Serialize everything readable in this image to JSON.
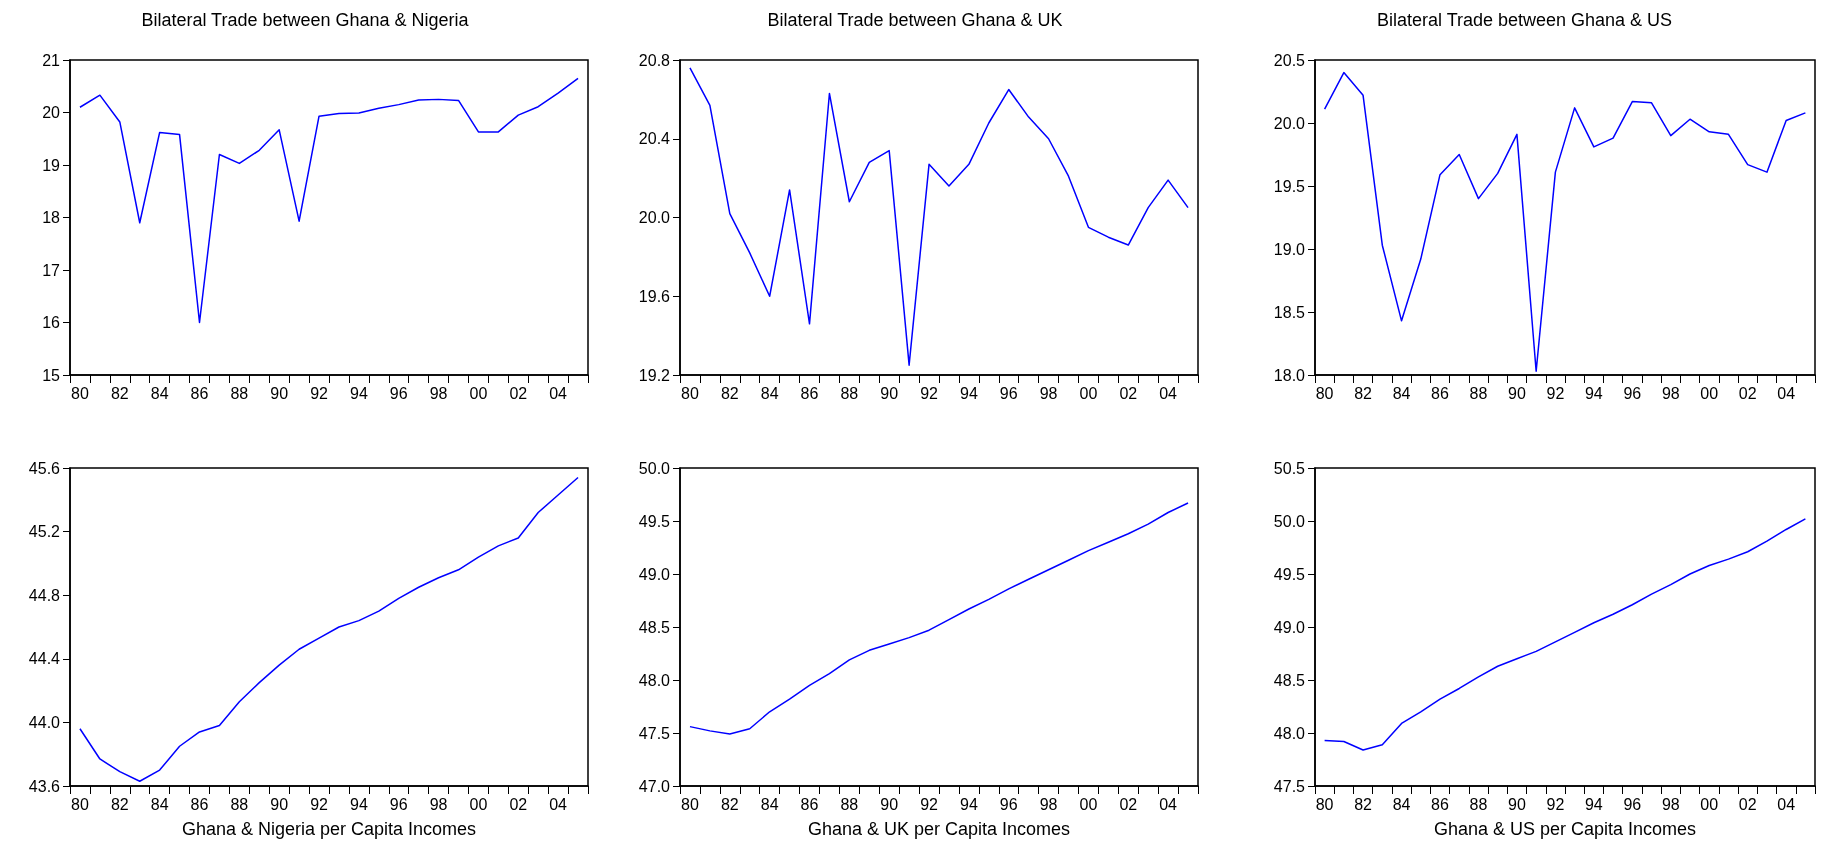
{
  "chart_data": [
    {
      "type": "line",
      "title": "Bilateral Trade between Ghana & Nigeria",
      "categories": [
        "80",
        null,
        "82",
        null,
        "84",
        null,
        "86",
        null,
        "88",
        null,
        "90",
        null,
        "92",
        null,
        "94",
        null,
        "96",
        null,
        "98",
        null,
        "00",
        null,
        "02",
        null,
        "04",
        null
      ],
      "color": "#0000ff",
      "marker": "none",
      "grid": false,
      "ylim": [
        15,
        21
      ],
      "yticks": [
        15,
        16,
        17,
        18,
        19,
        20,
        21
      ],
      "values": [
        20.1,
        20.33,
        19.82,
        17.9,
        19.62,
        19.58,
        16.0,
        19.2,
        19.03,
        19.28,
        19.67,
        17.93,
        19.93,
        19.98,
        19.99,
        20.08,
        20.15,
        20.24,
        20.25,
        20.23,
        19.63,
        19.63,
        19.95,
        20.11,
        20.37,
        20.65
      ]
    },
    {
      "type": "line",
      "title": "Bilateral Trade between Ghana & UK",
      "categories": [
        "80",
        null,
        "82",
        null,
        "84",
        null,
        "86",
        null,
        "88",
        null,
        "90",
        null,
        "92",
        null,
        "94",
        null,
        "96",
        null,
        "98",
        null,
        "00",
        null,
        "02",
        null,
        "04",
        null
      ],
      "color": "#0000ff",
      "marker": "none",
      "grid": false,
      "ylim": [
        19.2,
        20.8
      ],
      "yticks": [
        19.2,
        19.6,
        {
          "value": 20,
          "label": "20.0"
        },
        20.4,
        20.8
      ],
      "values": [
        20.76,
        20.57,
        20.02,
        19.82,
        19.6,
        20.14,
        19.46,
        20.63,
        20.08,
        20.28,
        20.34,
        19.25,
        20.27,
        20.16,
        20.27,
        20.48,
        20.65,
        20.51,
        20.4,
        20.21,
        19.95,
        19.9,
        19.86,
        20.05,
        20.19,
        20.05
      ]
    },
    {
      "type": "line",
      "title": "Bilateral Trade between Ghana & US",
      "categories": [
        "80",
        null,
        "82",
        null,
        "84",
        null,
        "86",
        null,
        "88",
        null,
        "90",
        null,
        "92",
        null,
        "94",
        null,
        "96",
        null,
        "98",
        null,
        "00",
        null,
        "02",
        null,
        "04",
        null
      ],
      "color": "#0000ff",
      "marker": "none",
      "grid": false,
      "ylim": [
        18,
        20.5
      ],
      "yticks": [
        {
          "value": 18,
          "label": "18.0"
        },
        18.5,
        {
          "value": 19,
          "label": "19.0"
        },
        19.5,
        {
          "value": 20,
          "label": "20.0"
        },
        20.5
      ],
      "values": [
        20.11,
        20.4,
        20.22,
        19.03,
        18.43,
        18.92,
        19.59,
        19.75,
        19.4,
        19.6,
        19.91,
        18.03,
        19.61,
        20.12,
        19.81,
        19.88,
        20.17,
        20.16,
        19.9,
        20.03,
        19.93,
        19.91,
        19.67,
        19.61,
        20.02,
        20.08
      ]
    },
    {
      "type": "line",
      "xlabel": "Ghana & Nigeria per Capita Incomes",
      "categories": [
        "80",
        null,
        "82",
        null,
        "84",
        null,
        "86",
        null,
        "88",
        null,
        "90",
        null,
        "92",
        null,
        "94",
        null,
        "96",
        null,
        "98",
        null,
        "00",
        null,
        "02",
        null,
        "04",
        null
      ],
      "color": "#0000ff",
      "marker": "none",
      "grid": false,
      "ylim": [
        43.6,
        45.6
      ],
      "yticks": [
        43.6,
        {
          "value": 44,
          "label": "44.0"
        },
        44.4,
        44.8,
        45.2,
        45.6
      ],
      "values": [
        43.96,
        43.77,
        43.69,
        43.63,
        43.7,
        43.85,
        43.94,
        43.98,
        44.13,
        44.25,
        44.36,
        44.46,
        44.53,
        44.6,
        44.64,
        44.7,
        44.78,
        44.85,
        44.91,
        44.96,
        45.04,
        45.11,
        45.16,
        45.32,
        45.43,
        45.54
      ]
    },
    {
      "type": "line",
      "xlabel": "Ghana & UK per Capita Incomes",
      "categories": [
        "80",
        null,
        "82",
        null,
        "84",
        null,
        "86",
        null,
        "88",
        null,
        "90",
        null,
        "92",
        null,
        "94",
        null,
        "96",
        null,
        "98",
        null,
        "00",
        null,
        "02",
        null,
        "04",
        null
      ],
      "color": "#0000ff",
      "marker": "none",
      "grid": false,
      "ylim": [
        47,
        50
      ],
      "yticks": [
        {
          "value": 47,
          "label": "47.0"
        },
        47.5,
        {
          "value": 48,
          "label": "48.0"
        },
        48.5,
        {
          "value": 49,
          "label": "49.0"
        },
        49.5,
        {
          "value": 50,
          "label": "50.0"
        }
      ],
      "values": [
        47.56,
        47.52,
        47.49,
        47.54,
        47.7,
        47.82,
        47.95,
        48.06,
        48.19,
        48.28,
        48.34,
        48.4,
        48.47,
        48.57,
        48.67,
        48.76,
        48.86,
        48.95,
        49.04,
        49.13,
        49.22,
        49.3,
        49.38,
        49.47,
        49.58,
        49.67
      ]
    },
    {
      "type": "line",
      "xlabel": "Ghana & US per Capita Incomes",
      "categories": [
        "80",
        null,
        "82",
        null,
        "84",
        null,
        "86",
        null,
        "88",
        null,
        "90",
        null,
        "92",
        null,
        "94",
        null,
        "96",
        null,
        "98",
        null,
        "00",
        null,
        "02",
        null,
        "04",
        null
      ],
      "color": "#0000ff",
      "marker": "none",
      "grid": false,
      "ylim": [
        47.5,
        50.5
      ],
      "yticks": [
        47.5,
        {
          "value": 48,
          "label": "48.0"
        },
        48.5,
        {
          "value": 49,
          "label": "49.0"
        },
        49.5,
        {
          "value": 50,
          "label": "50.0"
        },
        50.5
      ],
      "values": [
        47.93,
        47.92,
        47.84,
        47.89,
        48.09,
        48.2,
        48.32,
        48.42,
        48.53,
        48.63,
        48.7,
        48.77,
        48.86,
        48.95,
        49.04,
        49.12,
        49.21,
        49.31,
        49.4,
        49.5,
        49.58,
        49.64,
        49.71,
        49.81,
        49.92,
        50.02
      ]
    }
  ]
}
